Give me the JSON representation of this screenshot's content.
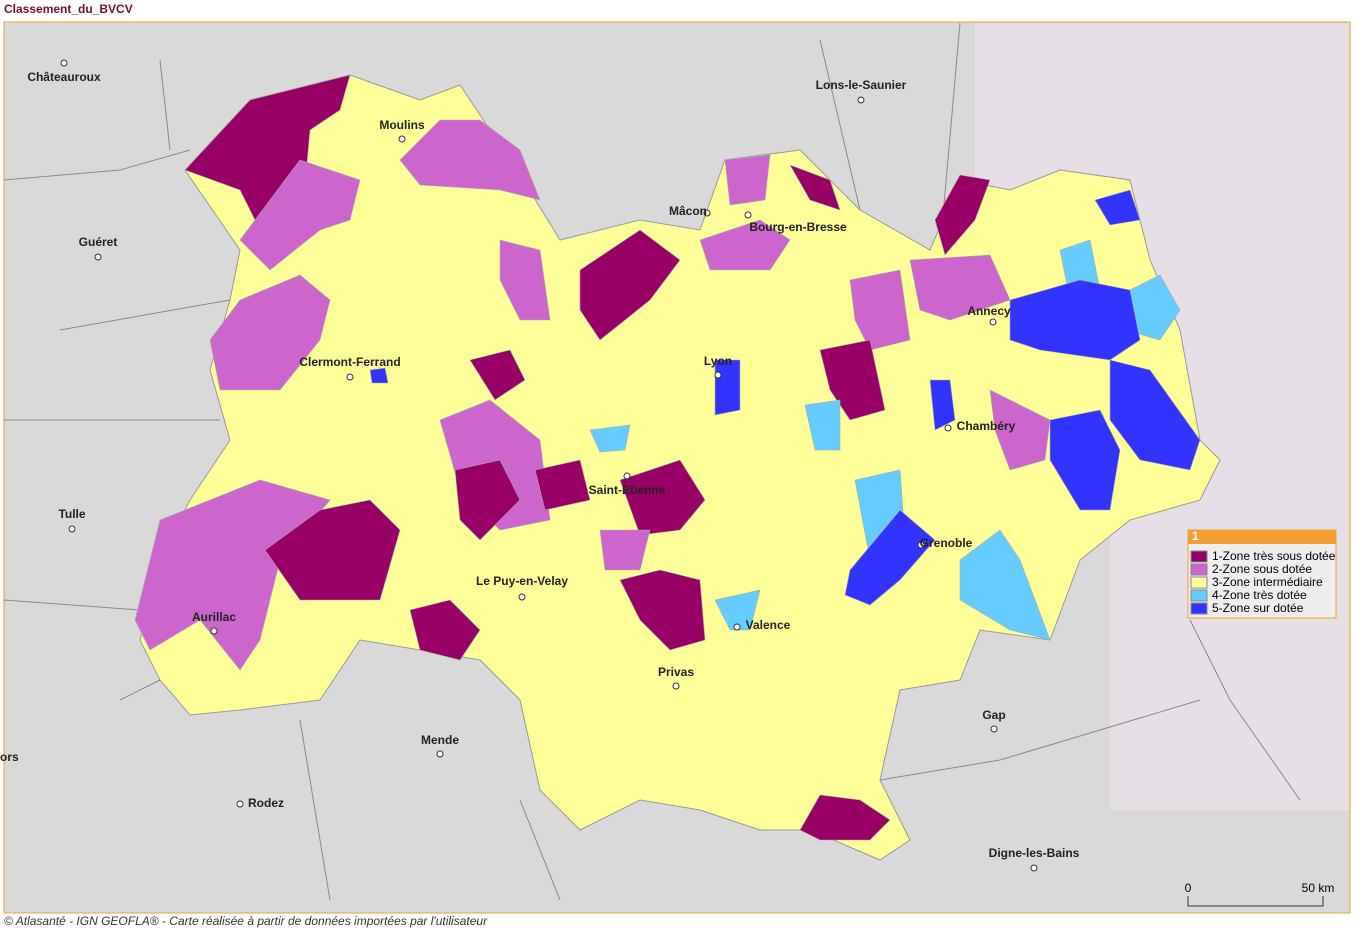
{
  "title": "Classement_du_BVCV",
  "cities": [
    "Châteauroux",
    "Moulins",
    "Lons-le-Saunier",
    "Mâcon",
    "Bourg-en-Bresse",
    "Guéret",
    "Annecy",
    "Clermont-Ferrand",
    "Lyon",
    "Chambéry",
    "Saint-Etienne",
    "Tulle",
    "Grenoble",
    "Le Puy-en-Velay",
    "Aurillac",
    "Valence",
    "Privas",
    "Gap",
    "Mende",
    "ors",
    "Rodez",
    "Digne-les-Bains"
  ],
  "legend": {
    "title": "1",
    "items": [
      {
        "label": "1-Zone très sous dotée",
        "color": "#990066"
      },
      {
        "label": "2-Zone sous dotée",
        "color": "#cc66cc"
      },
      {
        "label": "3-Zone intermédiaire",
        "color": "#ffff99"
      },
      {
        "label": "4-Zone très dotée",
        "color": "#66ccff"
      },
      {
        "label": "5-Zone sur dotée",
        "color": "#3333ff"
      }
    ]
  },
  "scale": [
    "0",
    "50 km"
  ],
  "credit": "© Atlasanté - IGN GEOFLA® - Carte réalisée à partir de données importées par l'utilisateur"
}
